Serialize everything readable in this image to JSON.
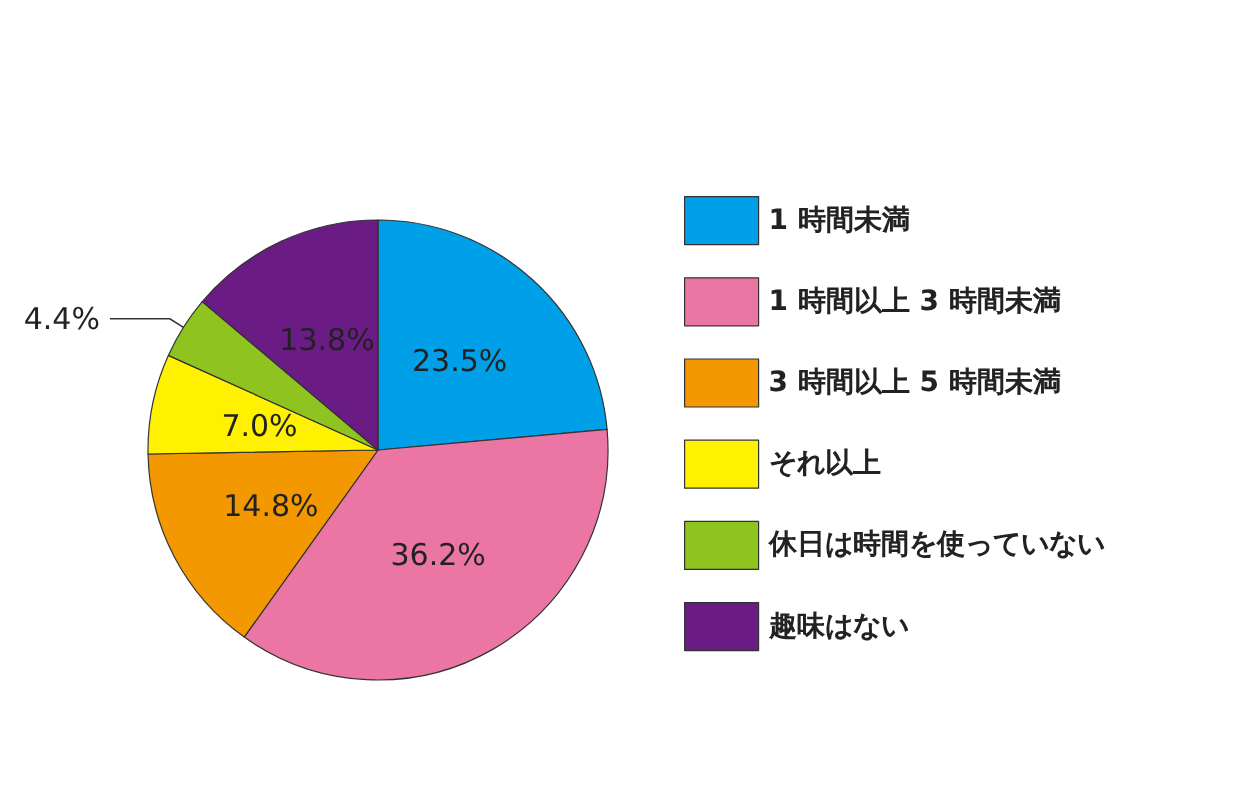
{
  "chart_data": {
    "type": "pie",
    "categories": [
      "1 時間未満",
      "1 時間以上 3 時間未満",
      "3 時間以上 5 時間未満",
      "それ以上",
      "休日は時間を使っていない",
      "趣味はない"
    ],
    "values": [
      23.5,
      36.2,
      14.8,
      7.0,
      4.4,
      13.8
    ],
    "value_labels": [
      "23.5%",
      "36.2%",
      "14.8%",
      "7.0%",
      "4.4%",
      "13.8%"
    ],
    "colors": [
      "#00a0e9",
      "#eb76a4",
      "#f39800",
      "#fff100",
      "#8fc31f",
      "#6a1b84"
    ],
    "legend": "right"
  }
}
